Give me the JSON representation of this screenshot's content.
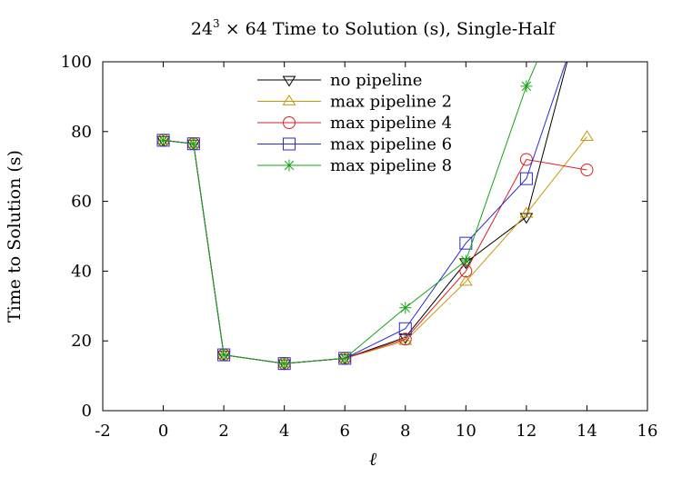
{
  "chart_data": {
    "type": "line",
    "title": "24³ × 64 Time to Solution (s), Single-Half",
    "title_parts": {
      "base": "24",
      "exp": "3",
      "rest": " × 64 Time to Solution (s), Single-Half"
    },
    "xlabel": "ℓ",
    "ylabel": "Time to Solution (s)",
    "xlim": [
      -2,
      16
    ],
    "ylim": [
      0,
      100
    ],
    "xticks": [
      -2,
      0,
      2,
      4,
      6,
      8,
      10,
      12,
      14,
      16
    ],
    "yticks": [
      0,
      20,
      40,
      60,
      80,
      100
    ],
    "grid": false,
    "legend_position": "top-center",
    "series": [
      {
        "name": "no pipeline",
        "color": "#000000",
        "marker": "triangle-down",
        "points": [
          [
            0,
            77.5
          ],
          [
            1,
            76.5
          ],
          [
            2,
            16
          ],
          [
            4,
            13.5
          ],
          [
            6,
            15
          ],
          [
            8,
            21
          ],
          [
            10,
            42.5
          ],
          [
            12,
            55.5
          ],
          [
            13.5,
            105
          ]
        ]
      },
      {
        "name": "max pipeline 2",
        "color": "#c8960a",
        "marker": "triangle-up",
        "points": [
          [
            0,
            77.5
          ],
          [
            1,
            76.5
          ],
          [
            2,
            16
          ],
          [
            4,
            13.5
          ],
          [
            6,
            15
          ],
          [
            8,
            20
          ],
          [
            10,
            37
          ],
          [
            12,
            56.5
          ],
          [
            14,
            78.5
          ]
        ]
      },
      {
        "name": "max pipeline 4",
        "color": "#d62020",
        "marker": "circle",
        "points": [
          [
            0,
            77.5
          ],
          [
            1,
            76.5
          ],
          [
            2,
            16
          ],
          [
            4,
            13.5
          ],
          [
            6,
            15
          ],
          [
            8,
            20.5
          ],
          [
            10,
            40
          ],
          [
            12,
            72
          ],
          [
            14,
            69
          ]
        ]
      },
      {
        "name": "max pipeline 6",
        "color": "#2a2ad0",
        "marker": "square",
        "points": [
          [
            0,
            77.5
          ],
          [
            1,
            76.5
          ],
          [
            2,
            16
          ],
          [
            4,
            13.5
          ],
          [
            6,
            15
          ],
          [
            8,
            23.5
          ],
          [
            10,
            48
          ],
          [
            12,
            66.5
          ],
          [
            13.5,
            105
          ]
        ]
      },
      {
        "name": "max pipeline 8",
        "color": "#16a316",
        "marker": "asterisk",
        "points": [
          [
            0,
            77.5
          ],
          [
            1,
            76.5
          ],
          [
            2,
            16
          ],
          [
            4,
            13.5
          ],
          [
            6,
            15
          ],
          [
            8,
            29.5
          ],
          [
            10,
            43
          ],
          [
            12,
            93
          ],
          [
            12.6,
            105
          ]
        ]
      }
    ]
  }
}
